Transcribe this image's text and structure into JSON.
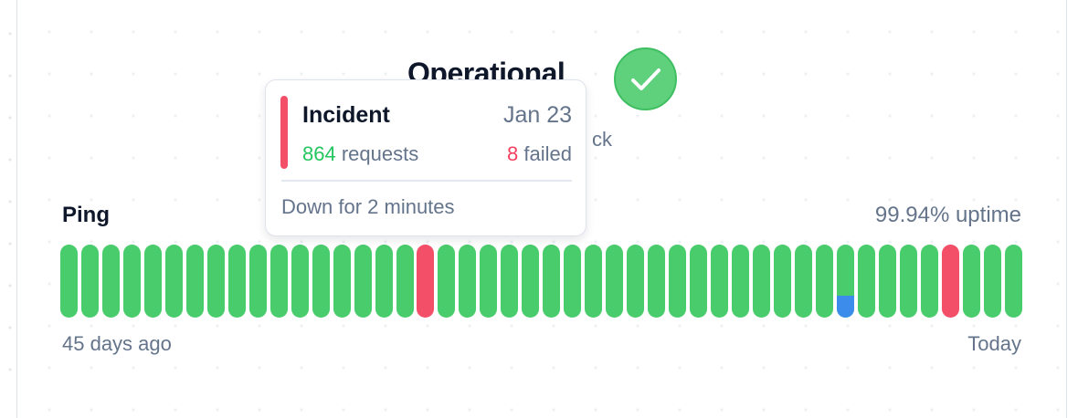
{
  "status": {
    "title": "Operational",
    "subtitle_visible": "ck",
    "icon": "check-icon",
    "color": "#48cc6c"
  },
  "monitor": {
    "name": "Ping",
    "uptime": "99.94% uptime",
    "start_label": "45 days ago",
    "end_label": "Today",
    "days": [
      {
        "status": "up"
      },
      {
        "status": "up"
      },
      {
        "status": "up"
      },
      {
        "status": "up"
      },
      {
        "status": "up"
      },
      {
        "status": "up"
      },
      {
        "status": "up"
      },
      {
        "status": "up"
      },
      {
        "status": "up"
      },
      {
        "status": "up"
      },
      {
        "status": "up"
      },
      {
        "status": "up"
      },
      {
        "status": "up"
      },
      {
        "status": "up"
      },
      {
        "status": "up"
      },
      {
        "status": "up"
      },
      {
        "status": "up"
      },
      {
        "status": "incident"
      },
      {
        "status": "up"
      },
      {
        "status": "up"
      },
      {
        "status": "up"
      },
      {
        "status": "up"
      },
      {
        "status": "up"
      },
      {
        "status": "up"
      },
      {
        "status": "up"
      },
      {
        "status": "up"
      },
      {
        "status": "up"
      },
      {
        "status": "up"
      },
      {
        "status": "up"
      },
      {
        "status": "up"
      },
      {
        "status": "up"
      },
      {
        "status": "up"
      },
      {
        "status": "up"
      },
      {
        "status": "up"
      },
      {
        "status": "up"
      },
      {
        "status": "up"
      },
      {
        "status": "up"
      },
      {
        "status": "partial",
        "degraded_fraction": 0.3
      },
      {
        "status": "up"
      },
      {
        "status": "up"
      },
      {
        "status": "up"
      },
      {
        "status": "up"
      },
      {
        "status": "incident"
      },
      {
        "status": "up"
      },
      {
        "status": "up"
      },
      {
        "status": "up"
      }
    ],
    "colors": {
      "up": "#48cc6c",
      "incident": "#f44f68",
      "degraded": "#3b8ceb"
    }
  },
  "tooltip": {
    "title": "Incident",
    "date": "Jan 23",
    "requests": "864",
    "requests_label": "requests",
    "failed": "8",
    "failed_label": "failed",
    "footer": "Down for 2 minutes"
  }
}
